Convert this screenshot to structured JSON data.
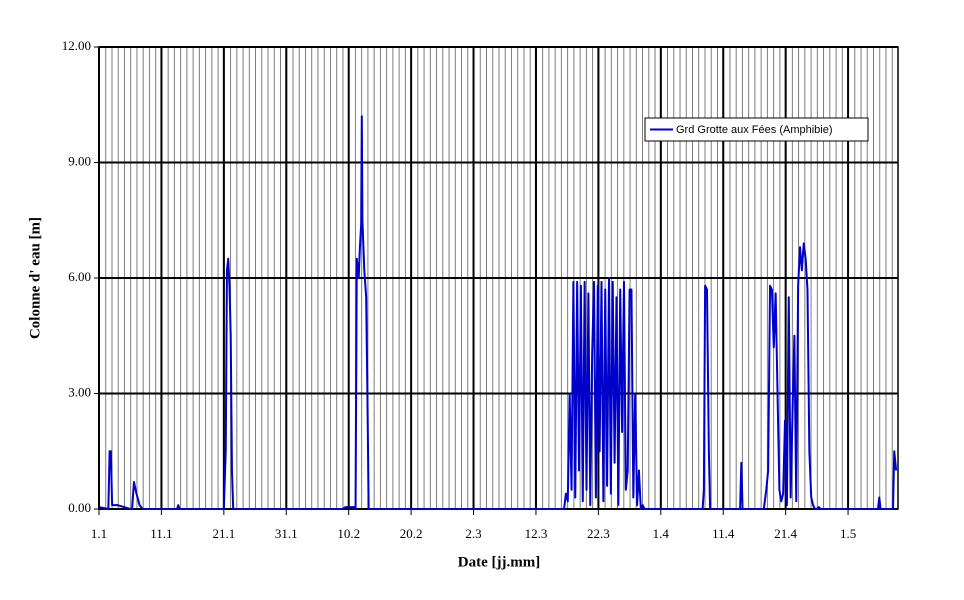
{
  "chart_data": {
    "type": "line",
    "ylabel": "Colonne d' eau [m]",
    "xlabel": "Date [jj.mm]",
    "xlim": [
      1,
      129
    ],
    "ylim": [
      0,
      12
    ],
    "xticks": [
      {
        "value": 1,
        "label": "1.1"
      },
      {
        "value": 11,
        "label": "11.1"
      },
      {
        "value": 21,
        "label": "21.1"
      },
      {
        "value": 31,
        "label": "31.1"
      },
      {
        "value": 41,
        "label": "10.2"
      },
      {
        "value": 51,
        "label": "20.2"
      },
      {
        "value": 61,
        "label": "2.3"
      },
      {
        "value": 71,
        "label": "12.3"
      },
      {
        "value": 81,
        "label": "22.3"
      },
      {
        "value": 91,
        "label": "1.4"
      },
      {
        "value": 101,
        "label": "11.4"
      },
      {
        "value": 111,
        "label": "21.4"
      },
      {
        "value": 121,
        "label": "1.5"
      }
    ],
    "yticks": [
      {
        "value": 0,
        "label": "0.00"
      },
      {
        "value": 3,
        "label": "3.00"
      },
      {
        "value": 6,
        "label": "6.00"
      },
      {
        "value": 9,
        "label": "9.00"
      },
      {
        "value": 12,
        "label": "12.00"
      }
    ],
    "grid": true,
    "legend": "upper right",
    "x": [
      1,
      2.5,
      2.7,
      2.9,
      3.1,
      4,
      5,
      6,
      6.3,
      6.6,
      7,
      7.5,
      8,
      13.5,
      13.7,
      13.9,
      21,
      21.3,
      21.5,
      21.7,
      21.9,
      22.1,
      22.3,
      22.5,
      40,
      40.5,
      42,
      42.1,
      42.3,
      42.6,
      42.8,
      43,
      43.1,
      43.2,
      43.5,
      43.8,
      44,
      44.2,
      75.5,
      75.8,
      76.1,
      76.4,
      76.7,
      77,
      77.3,
      77.6,
      77.9,
      78.2,
      78.5,
      78.8,
      79.1,
      79.4,
      79.7,
      80,
      80.3,
      80.6,
      80.9,
      81.2,
      81.5,
      81.8,
      82.1,
      82.4,
      82.7,
      83,
      83.3,
      83.6,
      83.9,
      84.2,
      84.5,
      84.8,
      85.1,
      85.4,
      85.7,
      86,
      86.3,
      86.6,
      86.9,
      87.2,
      87.5,
      87.8,
      88.1,
      88.4,
      88.7,
      97.7,
      97.9,
      98.1,
      98.4,
      98.7,
      98.9,
      103.7,
      103.9,
      104.1,
      107.5,
      107.9,
      108.2,
      108.5,
      108.8,
      109.1,
      109.4,
      109.7,
      110,
      110.3,
      110.6,
      110.9,
      111.2,
      111.5,
      111.8,
      112.1,
      112.4,
      112.7,
      113,
      113.3,
      113.6,
      113.9,
      114.2,
      114.5,
      114.8,
      115.1,
      115.4,
      115.7,
      116,
      116.3,
      116.6,
      125.8,
      126,
      126.2,
      128.2,
      128.4,
      128.7
    ],
    "series": [
      {
        "name": "Grd Grotte aux Fées (Amphibie)",
        "color": "#0000cc",
        "values": [
          0.05,
          0,
          1.5,
          1.5,
          0.1,
          0.1,
          0.05,
          0,
          0,
          0.7,
          0.4,
          0.1,
          0,
          0,
          0.1,
          0,
          0,
          1.5,
          6.2,
          6.5,
          5.8,
          4.5,
          1,
          0,
          0,
          0.05,
          0.05,
          0,
          6.5,
          6,
          6.8,
          7.4,
          10.2,
          7.5,
          6.2,
          5.5,
          3,
          0,
          0,
          0.4,
          0.2,
          3,
          0.5,
          5.9,
          0.3,
          5.9,
          1,
          5.8,
          0.2,
          5.9,
          0.5,
          5.6,
          0.1,
          4,
          5.9,
          0.3,
          5.8,
          1.5,
          5.9,
          0.2,
          5.7,
          0.6,
          6,
          0.4,
          5.9,
          1.2,
          5.5,
          0.1,
          5.7,
          2,
          5.9,
          0.5,
          1,
          5.7,
          5.7,
          0.3,
          3,
          0.1,
          1,
          0,
          0.1,
          0,
          0,
          0,
          0.5,
          5.8,
          5.7,
          1.5,
          0,
          0,
          1.2,
          0,
          0,
          0.5,
          1,
          5.8,
          5.7,
          4.2,
          5.6,
          3,
          0.5,
          0.2,
          0.4,
          2.3,
          0.1,
          5.5,
          0.3,
          2.5,
          4.5,
          0.2,
          5.8,
          6.8,
          6.2,
          6.9,
          6.5,
          5.7,
          1.5,
          0.3,
          0.1,
          0,
          0,
          0.05,
          0,
          0,
          0.3,
          0,
          0,
          1.5,
          1
        ]
      }
    ]
  }
}
